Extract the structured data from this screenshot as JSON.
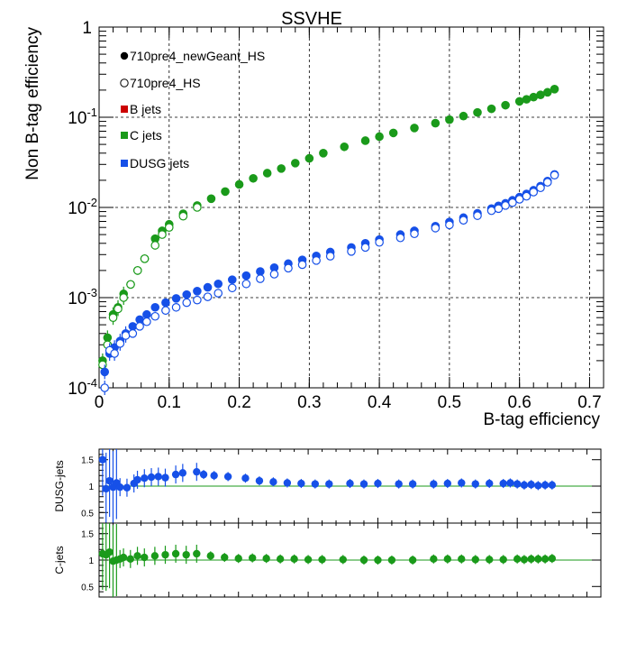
{
  "chart_data": [
    {
      "type": "scatter",
      "title": "SSVHE",
      "xlabel": "B-tag efficiency",
      "ylabel": "Non B-tag efficiency",
      "xlim": [
        0,
        0.72
      ],
      "ylim": [
        0.0001,
        1
      ],
      "yscale": "log",
      "grid": true,
      "x_ticks": [
        "0",
        "0.1",
        "0.2",
        "0.3",
        "0.4",
        "0.5",
        "0.6",
        "0.7"
      ],
      "y_ticks": [
        {
          "base": "1",
          "exp": ""
        },
        {
          "base": "10",
          "exp": "-1"
        },
        {
          "base": "10",
          "exp": "-2"
        },
        {
          "base": "10",
          "exp": "-3"
        },
        {
          "base": "10",
          "exp": "-4"
        }
      ],
      "legend": {
        "placement": "top-left",
        "entries": [
          "710pre4_newGeant_HS",
          "710pre4_HS",
          "B jets",
          "C jets",
          "DUSG jets"
        ]
      },
      "colors": {
        "newGeant": "#000000",
        "HS": "#000000",
        "b": "#cc0000",
        "c": "#1a9a1a",
        "dusg": "#1650e8"
      },
      "series": [
        {
          "name": "C jets",
          "sample": "710pre4_newGeant_HS",
          "marker": "filled",
          "x": [
            0.005,
            0.012,
            0.02,
            0.027,
            0.035,
            0.045,
            0.055,
            0.065,
            0.08,
            0.09,
            0.1,
            0.12,
            0.14,
            0.16,
            0.18,
            0.2,
            0.22,
            0.24,
            0.26,
            0.28,
            0.3,
            0.32,
            0.35,
            0.38,
            0.4,
            0.42,
            0.45,
            0.48,
            0.5,
            0.52,
            0.54,
            0.56,
            0.58,
            0.6,
            0.61,
            0.62,
            0.63,
            0.64,
            0.65
          ],
          "y": [
            0.0002,
            0.00036,
            0.00065,
            0.00078,
            0.0011,
            0.0014,
            0.002,
            0.0027,
            0.0045,
            0.0055,
            0.0065,
            0.0085,
            0.0105,
            0.0125,
            0.015,
            0.018,
            0.021,
            0.024,
            0.027,
            0.031,
            0.035,
            0.04,
            0.047,
            0.055,
            0.061,
            0.067,
            0.076,
            0.086,
            0.094,
            0.103,
            0.113,
            0.124,
            0.136,
            0.15,
            0.158,
            0.167,
            0.177,
            0.189,
            0.205
          ]
        },
        {
          "name": "C jets",
          "sample": "710pre4_HS",
          "marker": "open",
          "x": [
            0.005,
            0.012,
            0.02,
            0.027,
            0.035,
            0.045,
            0.055,
            0.065,
            0.08,
            0.09,
            0.1,
            0.12,
            0.14
          ],
          "y": [
            0.00018,
            0.0003,
            0.0006,
            0.00075,
            0.001,
            0.0014,
            0.002,
            0.0027,
            0.0038,
            0.005,
            0.006,
            0.008,
            0.01
          ]
        },
        {
          "name": "DUSG jets",
          "sample": "710pre4_newGeant_HS",
          "marker": "filled",
          "x": [
            0.008,
            0.015,
            0.022,
            0.03,
            0.038,
            0.048,
            0.058,
            0.068,
            0.08,
            0.095,
            0.11,
            0.125,
            0.14,
            0.155,
            0.17,
            0.19,
            0.21,
            0.23,
            0.25,
            0.27,
            0.29,
            0.31,
            0.33,
            0.36,
            0.38,
            0.4,
            0.43,
            0.45,
            0.48,
            0.5,
            0.52,
            0.54,
            0.56,
            0.57,
            0.58,
            0.59,
            0.6,
            0.61,
            0.62,
            0.63,
            0.64,
            0.65
          ],
          "y": [
            0.00015,
            0.00024,
            0.00028,
            0.00033,
            0.0004,
            0.00048,
            0.00057,
            0.00065,
            0.00078,
            0.00088,
            0.00098,
            0.00108,
            0.00118,
            0.0013,
            0.00142,
            0.00158,
            0.00175,
            0.00195,
            0.00215,
            0.00238,
            0.00262,
            0.0029,
            0.0032,
            0.0036,
            0.004,
            0.0044,
            0.005,
            0.0055,
            0.0062,
            0.0069,
            0.0077,
            0.0086,
            0.0097,
            0.0104,
            0.0111,
            0.012,
            0.013,
            0.0141,
            0.0155,
            0.0172,
            0.0196,
            0.0232
          ]
        },
        {
          "name": "DUSG jets",
          "sample": "710pre4_HS",
          "marker": "open",
          "x": [
            0.008,
            0.015,
            0.022,
            0.03,
            0.038,
            0.048,
            0.058,
            0.068,
            0.08,
            0.095,
            0.11,
            0.125,
            0.14,
            0.155,
            0.17,
            0.19,
            0.21,
            0.23,
            0.25,
            0.27,
            0.29,
            0.31,
            0.33,
            0.36,
            0.38,
            0.4,
            0.43,
            0.45,
            0.48,
            0.5,
            0.52,
            0.54,
            0.56,
            0.57,
            0.58,
            0.59,
            0.6,
            0.61,
            0.62,
            0.63,
            0.64,
            0.65
          ],
          "y": [
            0.0001,
            0.00026,
            0.00024,
            0.00031,
            0.00038,
            0.0004,
            0.00048,
            0.00054,
            0.00062,
            0.00072,
            0.00078,
            0.00088,
            0.00094,
            0.00102,
            0.00112,
            0.00128,
            0.00142,
            0.00162,
            0.00182,
            0.00212,
            0.00232,
            0.00258,
            0.00288,
            0.00325,
            0.0036,
            0.0041,
            0.0046,
            0.0051,
            0.0059,
            0.0064,
            0.0072,
            0.0081,
            0.0092,
            0.0097,
            0.0105,
            0.0113,
            0.0123,
            0.0133,
            0.0148,
            0.0165,
            0.019,
            0.0228
          ]
        }
      ]
    },
    {
      "type": "scatter",
      "ylabel": "DUSG-jets",
      "xlim": [
        0,
        0.72
      ],
      "ylim": [
        0.3,
        1.7
      ],
      "y_ticks": [
        "1.5",
        "1",
        "0.5"
      ],
      "reference_line": 1,
      "series": [
        {
          "name": "DUSG jets",
          "x": [
            0.005,
            0.01,
            0.015,
            0.02,
            0.025,
            0.03,
            0.04,
            0.05,
            0.055,
            0.065,
            0.075,
            0.085,
            0.095,
            0.11,
            0.12,
            0.14,
            0.15,
            0.165,
            0.185,
            0.21,
            0.23,
            0.25,
            0.27,
            0.29,
            0.31,
            0.33,
            0.36,
            0.38,
            0.4,
            0.43,
            0.45,
            0.48,
            0.5,
            0.52,
            0.54,
            0.56,
            0.58,
            0.59,
            0.6,
            0.61,
            0.62,
            0.63,
            0.64,
            0.65
          ],
          "y": [
            1.5,
            0.95,
            1.1,
            0.98,
            1.06,
            0.98,
            0.97,
            1.05,
            1.12,
            1.15,
            1.17,
            1.18,
            1.16,
            1.22,
            1.25,
            1.27,
            1.22,
            1.2,
            1.18,
            1.15,
            1.1,
            1.08,
            1.06,
            1.05,
            1.04,
            1.04,
            1.05,
            1.04,
            1.05,
            1.04,
            1.04,
            1.04,
            1.05,
            1.06,
            1.04,
            1.05,
            1.05,
            1.06,
            1.04,
            1.02,
            1.03,
            1.01,
            1.02,
            1.02
          ]
        }
      ]
    },
    {
      "type": "scatter",
      "ylabel": "C-jets",
      "xlim": [
        0,
        0.72
      ],
      "ylim": [
        0.3,
        1.7
      ],
      "y_ticks": [
        "1.5",
        "1",
        "0.5"
      ],
      "reference_line": 1,
      "series": [
        {
          "name": "C jets",
          "x": [
            0.005,
            0.01,
            0.015,
            0.02,
            0.025,
            0.03,
            0.035,
            0.045,
            0.055,
            0.065,
            0.08,
            0.095,
            0.11,
            0.125,
            0.14,
            0.16,
            0.18,
            0.2,
            0.22,
            0.24,
            0.26,
            0.28,
            0.3,
            0.32,
            0.35,
            0.38,
            0.4,
            0.42,
            0.45,
            0.48,
            0.5,
            0.52,
            0.54,
            0.56,
            0.58,
            0.6,
            0.61,
            0.62,
            0.63,
            0.64,
            0.65
          ],
          "y": [
            1.12,
            1.1,
            1.15,
            0.98,
            1.0,
            1.02,
            1.05,
            1.02,
            1.08,
            1.05,
            1.08,
            1.1,
            1.12,
            1.1,
            1.12,
            1.08,
            1.05,
            1.03,
            1.04,
            1.03,
            1.02,
            1.02,
            1.01,
            1.01,
            1.01,
            1.0,
            1.0,
            1.0,
            1.0,
            1.02,
            1.02,
            1.02,
            1.01,
            1.01,
            1.01,
            1.02,
            1.01,
            1.02,
            1.02,
            1.02,
            1.03
          ]
        }
      ]
    }
  ]
}
